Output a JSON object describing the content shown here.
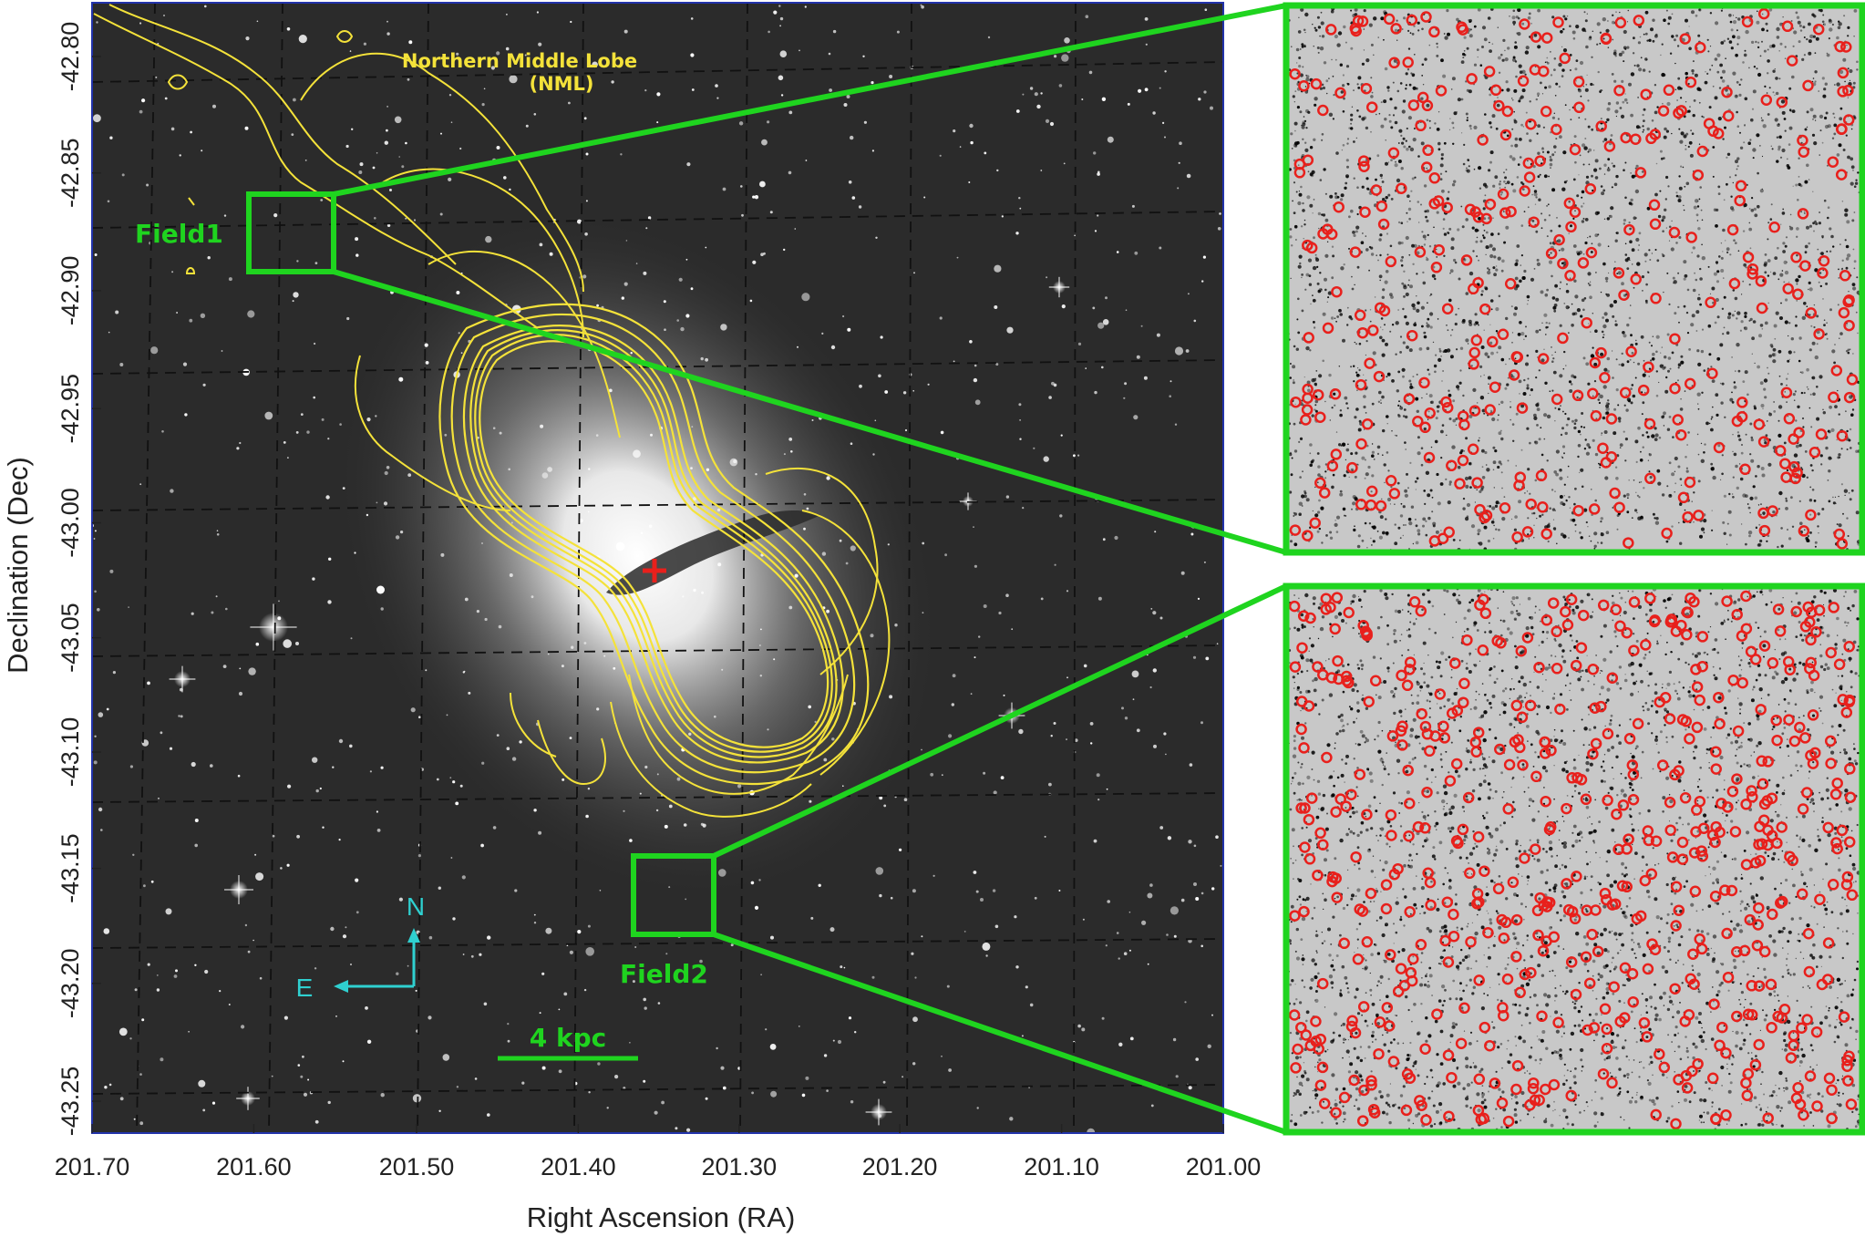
{
  "figure": {
    "x_axis_label": "Right Ascension (RA)",
    "y_axis_label": "Declination (Dec)",
    "x_ticks": [
      "201.70",
      "201.60",
      "201.50",
      "201.40",
      "201.30",
      "201.20",
      "201.10",
      "201.00"
    ],
    "y_ticks": [
      "-42.80",
      "-42.85",
      "-42.90",
      "-42.95",
      "-43.00",
      "-43.05",
      "-43.10",
      "-43.15",
      "-43.20",
      "-43.25"
    ],
    "annotations": {
      "lobe_name": "Northern Middle Lobe",
      "lobe_abbrev": "(NML)",
      "field1": "Field1",
      "field2": "Field2",
      "scale_bar": "4 kpc",
      "compass_north": "N",
      "compass_east": "E"
    },
    "colors": {
      "contours": "#f4e23a",
      "field_boxes": "#1fd41f",
      "compass": "#2fd0d0",
      "center_marker": "#e8201c",
      "source_circles": "#e8201c",
      "grid": "#111111",
      "frame": "#2233aa"
    },
    "icons": {
      "center_marker": "red-cross-icon",
      "compass": "compass-arrows-icon"
    }
  }
}
